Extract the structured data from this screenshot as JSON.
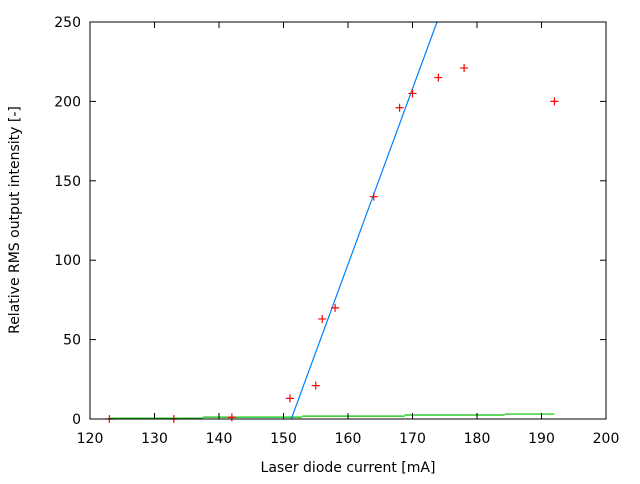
{
  "chart_data": {
    "type": "scatter",
    "xlabel": "Laser diode current [mA]",
    "ylabel": "Relative RMS output intensity [-]",
    "xlim": [
      120,
      200
    ],
    "ylim": [
      0,
      250
    ],
    "xticks": [
      120,
      130,
      140,
      150,
      160,
      170,
      180,
      190,
      200
    ],
    "yticks": [
      0,
      50,
      100,
      150,
      200,
      250
    ],
    "grid": false,
    "series": [
      {
        "type": "scatter",
        "marker": "+",
        "color": "#ff0000",
        "x": [
          123,
          133,
          142,
          151,
          155,
          156,
          158,
          164,
          168,
          170,
          174,
          178,
          192
        ],
        "y": [
          0,
          0,
          1,
          13,
          21,
          63,
          70,
          140,
          196,
          205,
          215,
          221,
          200
        ]
      },
      {
        "type": "line",
        "color": "#0080ff",
        "x": [
          151.2,
          173.8
        ],
        "y": [
          0,
          250
        ]
      },
      {
        "type": "step",
        "color": "#00c000",
        "x": [
          123,
          137.5,
          152.9,
          168.8,
          184.3,
          192
        ],
        "y": [
          0.5,
          1.2,
          1.8,
          2.5,
          3.1,
          3.1
        ]
      }
    ]
  }
}
